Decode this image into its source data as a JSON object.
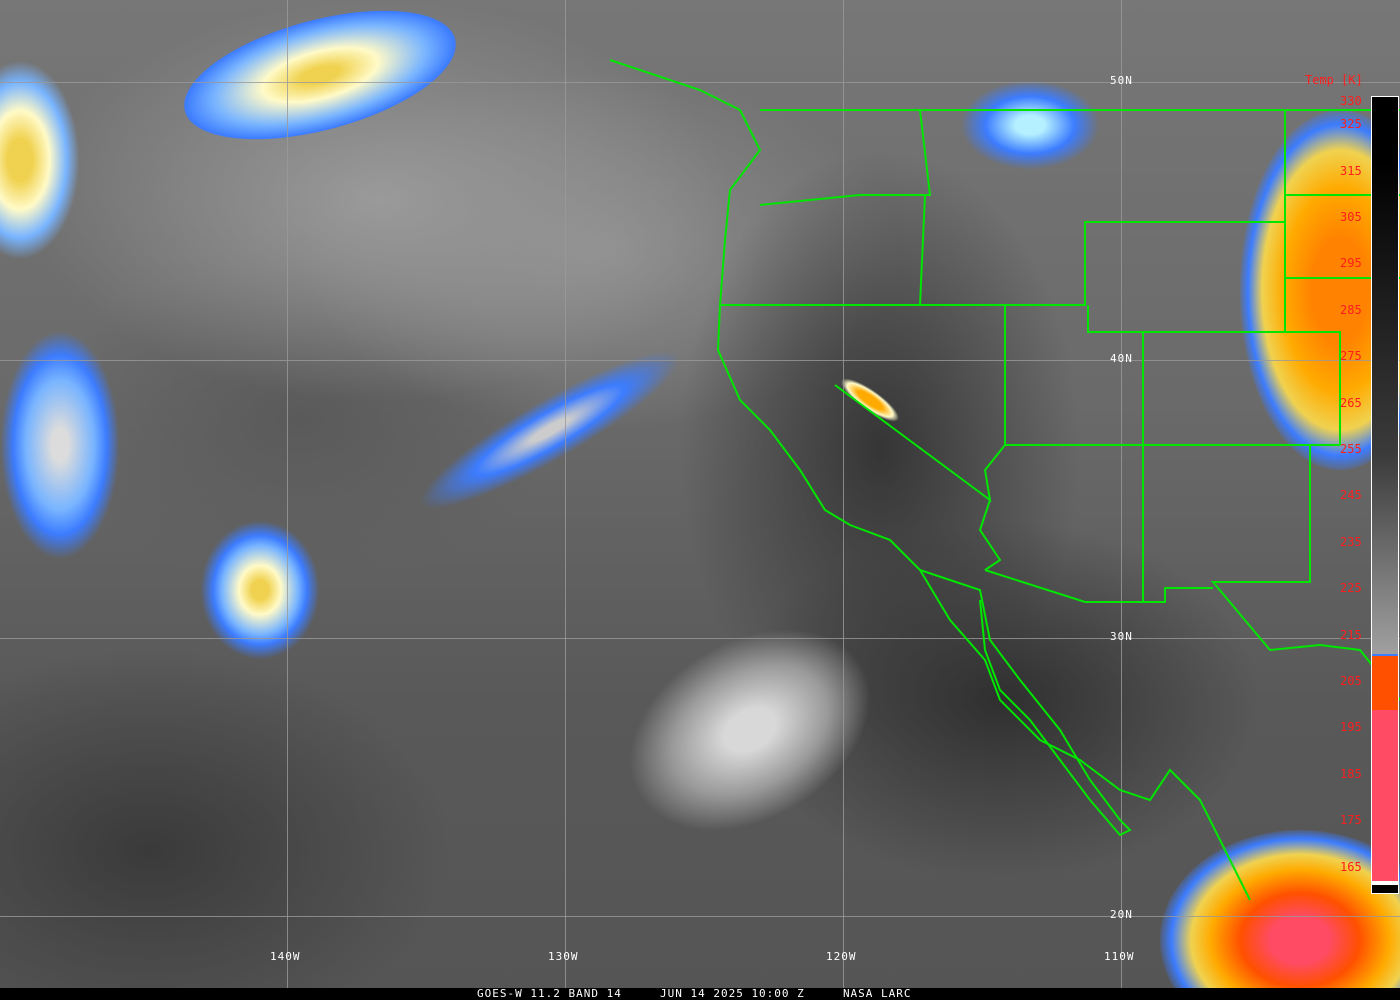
{
  "legend": {
    "title": "Temp [K]",
    "ticks": [
      "330",
      "325",
      "315",
      "305",
      "295",
      "285",
      "275",
      "265",
      "255",
      "245",
      "235",
      "225",
      "215",
      "205",
      "195",
      "185",
      "175",
      "165"
    ]
  },
  "grid": {
    "lat_labels": [
      "50N",
      "40N",
      "30N",
      "20N"
    ],
    "lon_labels": [
      "140W",
      "130W",
      "120W",
      "110W"
    ]
  },
  "footer": {
    "satellite": "GOES-W 11.2 BAND 14",
    "datetime": "JUN 14 2025 10:00 Z",
    "credit": "NASA LARC"
  },
  "colors": {
    "border": "#00e600",
    "grid": "#9a9a9a",
    "legend_text": "#ff1e1e",
    "cold_cloud": "#ffaa00",
    "cloud_blue": "#3c7cff"
  }
}
